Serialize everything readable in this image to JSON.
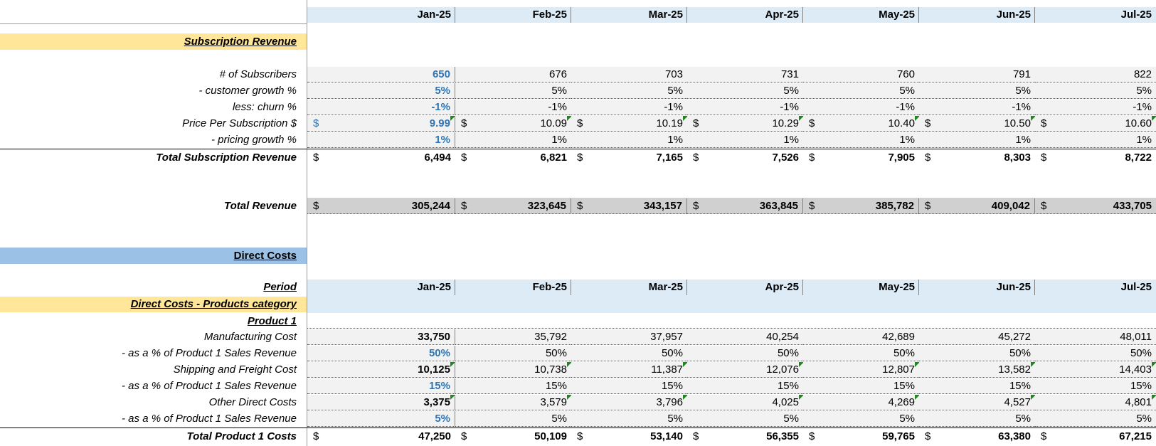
{
  "months": [
    "Jan-25",
    "Feb-25",
    "Mar-25",
    "Apr-25",
    "May-25",
    "Jun-25",
    "Jul-25"
  ],
  "colors": {
    "yellow_band": "#ffe699",
    "blue_band": "#9bc2e6",
    "header_band": "#ddebf7",
    "input_blue": "#2f75b5",
    "grey_total": "#d0d0d0"
  },
  "subscription": {
    "title": "Subscription Revenue",
    "subscribers": {
      "label": "# of Subscribers",
      "values": [
        "650",
        "676",
        "703",
        "731",
        "760",
        "791",
        "822"
      ]
    },
    "customer_growth": {
      "label": "- customer growth %",
      "values": [
        "5%",
        "5%",
        "5%",
        "5%",
        "5%",
        "5%",
        "5%"
      ]
    },
    "churn": {
      "label": "less: churn %",
      "values": [
        "-1%",
        "-1%",
        "-1%",
        "-1%",
        "-1%",
        "-1%",
        "-1%"
      ]
    },
    "price": {
      "label": "Price Per Subscription $",
      "currency": "$",
      "values": [
        "9.99",
        "10.09",
        "10.19",
        "10.29",
        "10.40",
        "10.50",
        "10.60"
      ]
    },
    "pricing_growth": {
      "label": "- pricing growth %",
      "values": [
        "1%",
        "1%",
        "1%",
        "1%",
        "1%",
        "1%",
        "1%"
      ]
    },
    "total": {
      "label": "Total Subscription Revenue",
      "currency": "$",
      "values": [
        "6,494",
        "6,821",
        "7,165",
        "7,526",
        "7,905",
        "8,303",
        "8,722"
      ]
    }
  },
  "total_revenue": {
    "label": "Total Revenue",
    "currency": "$",
    "values": [
      "305,244",
      "323,645",
      "343,157",
      "363,845",
      "385,782",
      "409,042",
      "433,705"
    ]
  },
  "direct_costs": {
    "title": "Direct Costs",
    "period_label": "Period",
    "category_title": "Direct Costs - Products category",
    "product_title": "Product 1",
    "manufacturing": {
      "label": "Manufacturing Cost",
      "values": [
        "33,750",
        "35,792",
        "37,957",
        "40,254",
        "42,689",
        "45,272",
        "48,011"
      ]
    },
    "manufacturing_pct": {
      "label": "- as a % of Product 1 Sales Revenue",
      "values": [
        "50%",
        "50%",
        "50%",
        "50%",
        "50%",
        "50%",
        "50%"
      ]
    },
    "shipping": {
      "label": "Shipping and Freight Cost",
      "values": [
        "10,125",
        "10,738",
        "11,387",
        "12,076",
        "12,807",
        "13,582",
        "14,403"
      ]
    },
    "shipping_pct": {
      "label": "- as a % of Product 1 Sales Revenue",
      "values": [
        "15%",
        "15%",
        "15%",
        "15%",
        "15%",
        "15%",
        "15%"
      ]
    },
    "other": {
      "label": "Other Direct Costs",
      "values": [
        "3,375",
        "3,579",
        "3,796",
        "4,025",
        "4,269",
        "4,527",
        "4,801"
      ]
    },
    "other_pct": {
      "label": "- as a % of Product 1 Sales Revenue",
      "values": [
        "5%",
        "5%",
        "5%",
        "5%",
        "5%",
        "5%",
        "5%"
      ]
    },
    "total": {
      "label": "Total Product 1 Costs",
      "currency": "$",
      "values": [
        "47,250",
        "50,109",
        "53,140",
        "56,355",
        "59,765",
        "63,380",
        "67,215"
      ]
    }
  }
}
